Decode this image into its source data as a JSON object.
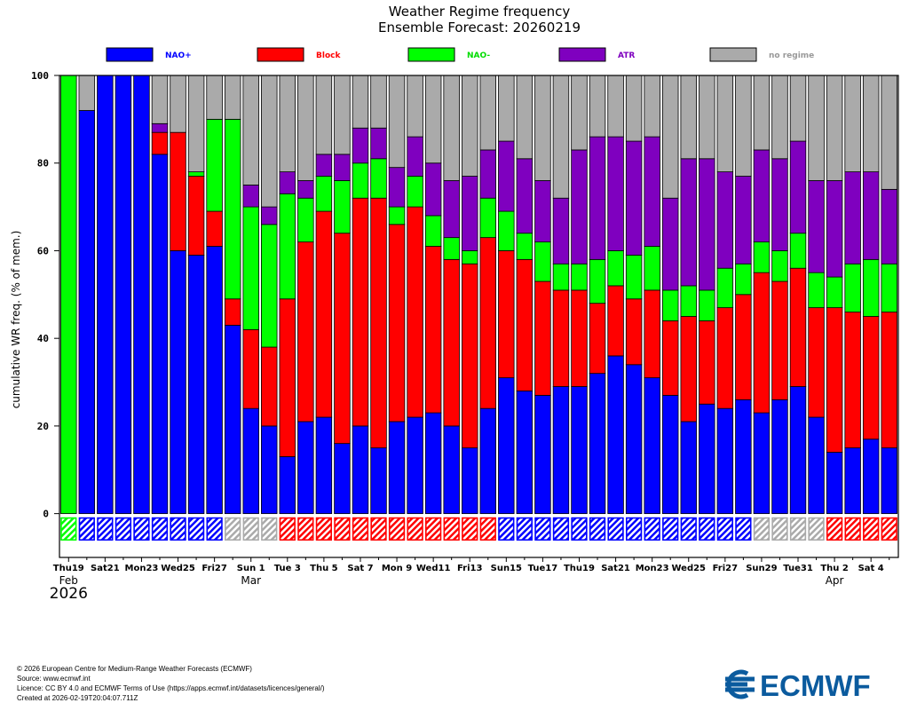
{
  "chart_data": {
    "type": "stacked-bar",
    "title": "Weather Regime frequency",
    "subtitle": "Ensemble Forecast: 20260219",
    "ylabel": "cumulative WR freq. (% of mem.)",
    "ylim": [
      -10,
      100
    ],
    "yticks": [
      0,
      20,
      40,
      60,
      80,
      100
    ],
    "legend": [
      {
        "name": "NAO+",
        "color": "#0000ff"
      },
      {
        "name": "Block",
        "color": "#ff0000"
      },
      {
        "name": "NAO-",
        "color": "#00ff00"
      },
      {
        "name": "ATR",
        "color": "#7f00bf"
      },
      {
        "name": "no regime",
        "color": "#aaaaaa"
      }
    ],
    "regime_colors": {
      "NAO+": "#0000ff",
      "Block": "#ff0000",
      "NAO-": "#00ff00",
      "ATR": "#7f00bf",
      "no regime": "#aaaaaa"
    },
    "label_colors": {
      "NAO+": "#0000ff",
      "Block": "#ff0000",
      "NAO-": "#00dd00",
      "ATR": "#7f00bf",
      "no regime": "#999999"
    },
    "series_order": [
      "NAO+",
      "Block",
      "NAO-",
      "ATR",
      "no regime"
    ],
    "cumulative": [
      [
        0,
        0,
        100,
        100,
        100
      ],
      [
        92,
        92,
        92,
        92,
        100
      ],
      [
        100,
        100,
        100,
        100,
        100
      ],
      [
        100,
        100,
        100,
        100,
        100
      ],
      [
        100,
        100,
        100,
        100,
        100
      ],
      [
        82,
        87,
        87,
        89,
        100
      ],
      [
        60,
        87,
        87,
        87,
        100
      ],
      [
        59,
        77,
        78,
        78,
        100
      ],
      [
        61,
        69,
        90,
        90,
        100
      ],
      [
        43,
        49,
        90,
        90,
        100
      ],
      [
        24,
        42,
        70,
        75,
        100
      ],
      [
        20,
        38,
        66,
        70,
        100
      ],
      [
        13,
        49,
        73,
        78,
        100
      ],
      [
        21,
        62,
        72,
        76,
        100
      ],
      [
        22,
        69,
        77,
        82,
        100
      ],
      [
        16,
        64,
        76,
        82,
        100
      ],
      [
        20,
        72,
        80,
        88,
        100
      ],
      [
        15,
        72,
        81,
        88,
        100
      ],
      [
        21,
        66,
        70,
        79,
        100
      ],
      [
        22,
        70,
        77,
        86,
        100
      ],
      [
        23,
        61,
        68,
        80,
        100
      ],
      [
        20,
        58,
        63,
        76,
        100
      ],
      [
        15,
        57,
        60,
        77,
        100
      ],
      [
        24,
        63,
        72,
        83,
        100
      ],
      [
        31,
        60,
        69,
        85,
        100
      ],
      [
        28,
        58,
        64,
        81,
        100
      ],
      [
        27,
        53,
        62,
        76,
        100
      ],
      [
        29,
        51,
        57,
        72,
        100
      ],
      [
        29,
        51,
        57,
        83,
        100
      ],
      [
        32,
        48,
        58,
        86,
        100
      ],
      [
        36,
        52,
        60,
        86,
        100
      ],
      [
        34,
        49,
        59,
        85,
        100
      ],
      [
        31,
        51,
        61,
        86,
        100
      ],
      [
        27,
        44,
        51,
        72,
        100
      ],
      [
        21,
        45,
        52,
        81,
        100
      ],
      [
        25,
        44,
        51,
        81,
        100
      ],
      [
        24,
        47,
        56,
        78,
        100
      ],
      [
        26,
        50,
        57,
        77,
        100
      ],
      [
        23,
        55,
        62,
        83,
        100
      ],
      [
        26,
        53,
        60,
        81,
        100
      ],
      [
        29,
        56,
        64,
        85,
        100
      ],
      [
        22,
        47,
        55,
        76,
        100
      ],
      [
        14,
        47,
        54,
        76,
        100
      ],
      [
        15,
        46,
        57,
        78,
        100
      ],
      [
        17,
        45,
        58,
        78,
        100
      ],
      [
        15,
        46,
        57,
        74,
        100
      ]
    ],
    "dominant": [
      "NAO-",
      "NAO+",
      "NAO+",
      "NAO+",
      "NAO+",
      "NAO+",
      "NAO+",
      "NAO+",
      "NAO+",
      "no regime",
      "no regime",
      "no regime",
      "Block",
      "Block",
      "Block",
      "Block",
      "Block",
      "Block",
      "Block",
      "Block",
      "Block",
      "Block",
      "Block",
      "Block",
      "NAO+",
      "NAO+",
      "NAO+",
      "NAO+",
      "NAO+",
      "NAO+",
      "NAO+",
      "NAO+",
      "NAO+",
      "NAO+",
      "NAO+",
      "NAO+",
      "NAO+",
      "NAO+",
      "no regime",
      "no regime",
      "no regime",
      "no regime",
      "Block",
      "Block",
      "Block",
      "Block"
    ],
    "x_tick_labels": [
      {
        "index": 0,
        "label": "Thu19",
        "red": false
      },
      {
        "index": 2,
        "label": "Sat21",
        "red": false
      },
      {
        "index": 4,
        "label": "Mon23",
        "red": false
      },
      {
        "index": 6,
        "label": "Wed25",
        "red": false
      },
      {
        "index": 8,
        "label": "Fri27",
        "red": false
      },
      {
        "index": 10,
        "label": "Sun 1",
        "red": true
      },
      {
        "index": 12,
        "label": "Tue 3",
        "red": false
      },
      {
        "index": 14,
        "label": "Thu 5",
        "red": false
      },
      {
        "index": 16,
        "label": "Sat 7",
        "red": false
      },
      {
        "index": 18,
        "label": "Mon 9",
        "red": false
      },
      {
        "index": 20,
        "label": "Wed11",
        "red": false
      },
      {
        "index": 22,
        "label": "Fri13",
        "red": false
      },
      {
        "index": 24,
        "label": "Sun15",
        "red": true
      },
      {
        "index": 26,
        "label": "Tue17",
        "red": false
      },
      {
        "index": 28,
        "label": "Thu19",
        "red": false
      },
      {
        "index": 30,
        "label": "Sat21",
        "red": false
      },
      {
        "index": 32,
        "label": "Mon23",
        "red": false
      },
      {
        "index": 34,
        "label": "Wed25",
        "red": false
      },
      {
        "index": 36,
        "label": "Fri27",
        "red": false
      },
      {
        "index": 38,
        "label": "Sun29",
        "red": true
      },
      {
        "index": 40,
        "label": "Tue31",
        "red": false
      },
      {
        "index": 42,
        "label": "Thu 2",
        "red": false
      },
      {
        "index": 44,
        "label": "Sat 4",
        "red": false
      }
    ],
    "month_labels": [
      {
        "index": 0,
        "label": "Feb"
      },
      {
        "index": 10,
        "label": "Mar"
      },
      {
        "index": 42,
        "label": "Apr"
      }
    ],
    "year_label": "2026"
  },
  "footer": {
    "copyright": "© 2026 European Centre for Medium-Range Weather Forecasts (ECMWF)",
    "source": "Source: www.ecmwf.int",
    "licence": "Licence: CC BY 4.0 and ECMWF Terms of Use (https://apps.ecmwf.int/datasets/licences/general/)",
    "created": "Created at 2026-02-19T20:04:07.711Z"
  },
  "logo": {
    "text": "ECMWF",
    "color": "#0b5b9e"
  }
}
